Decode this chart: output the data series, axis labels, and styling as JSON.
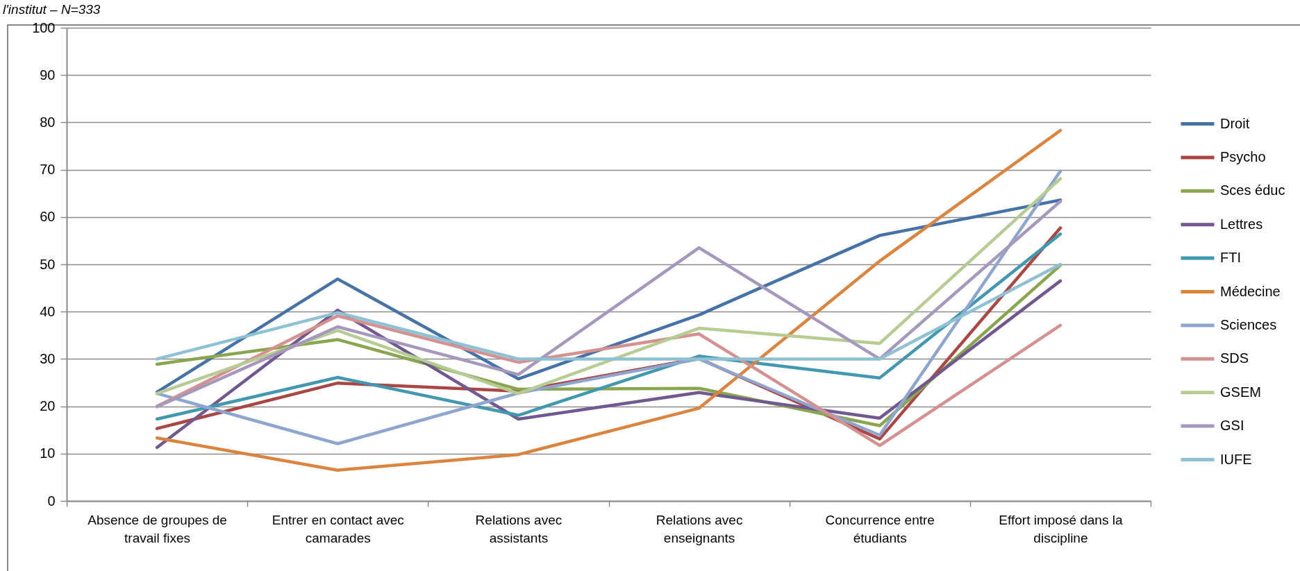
{
  "chart_data": {
    "type": "line",
    "title": "l'institut – N=333",
    "categories": [
      "Absence de groupes de travail fixes",
      "Entrer en contact avec camarades",
      "Relations avec assistants",
      "Relations avec enseignants",
      "Concurrence entre étudiants",
      "Effort imposé dans la discipline"
    ],
    "series": [
      {
        "name": "Droit",
        "color": "#4572a7",
        "values": [
          23.0,
          46.9,
          25.8,
          39.3,
          56.1,
          63.6
        ]
      },
      {
        "name": "Psycho",
        "color": "#aa4643",
        "values": [
          15.3,
          24.9,
          23.2,
          30.1,
          13.1,
          57.7
        ]
      },
      {
        "name": "Sces éduc",
        "color": "#89a54e",
        "values": [
          28.9,
          34.1,
          23.6,
          23.8,
          15.9,
          49.8
        ]
      },
      {
        "name": "Lettres",
        "color": "#71588f",
        "values": [
          11.3,
          40.3,
          17.3,
          22.9,
          17.5,
          46.5
        ]
      },
      {
        "name": "FTI",
        "color": "#4198af",
        "values": [
          17.3,
          26.1,
          18.1,
          30.6,
          26.0,
          56.4
        ]
      },
      {
        "name": "Médecine",
        "color": "#db843d",
        "values": [
          13.3,
          6.5,
          9.8,
          19.6,
          50.7,
          78.3
        ]
      },
      {
        "name": "Sciences",
        "color": "#8ea6cf",
        "values": [
          22.7,
          12.1,
          22.8,
          30.0,
          13.9,
          69.7
        ]
      },
      {
        "name": "SDS",
        "color": "#d49190",
        "values": [
          20.0,
          39.1,
          29.3,
          35.3,
          11.7,
          37.1
        ]
      },
      {
        "name": "GSEM",
        "color": "#b6cc92",
        "values": [
          22.7,
          36.0,
          22.7,
          36.5,
          33.3,
          68.1
        ]
      },
      {
        "name": "GSI",
        "color": "#a698bd",
        "values": [
          19.9,
          36.8,
          26.7,
          53.5,
          30.0,
          63.3
        ]
      },
      {
        "name": "IUFE",
        "color": "#8dc1d3",
        "values": [
          30.0,
          39.8,
          30.0,
          30.0,
          30.0,
          50.0
        ]
      }
    ],
    "ylim": [
      0,
      100
    ],
    "yticks": [
      0,
      10,
      20,
      30,
      40,
      50,
      60,
      70,
      80,
      90,
      100
    ],
    "grid": "y",
    "legend": "right"
  }
}
